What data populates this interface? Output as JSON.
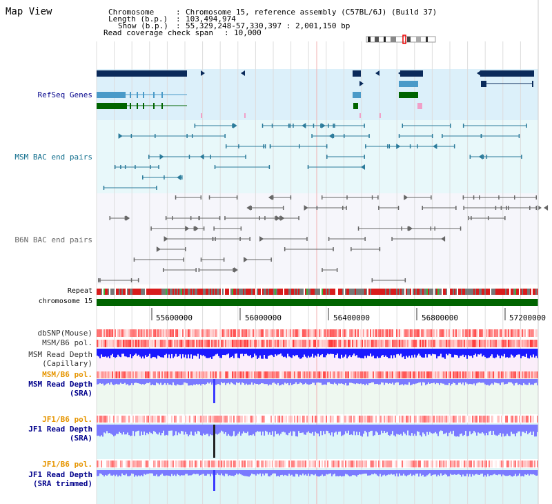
{
  "view_title": "Map View",
  "header": {
    "chromosome_label": "Chromosome",
    "chromosome_value": "Chromosome 15, reference assembly (C57BL/6J) (Build 37)",
    "length_label": "Length (b.p.)",
    "length_value": "103,494,974",
    "show_label": "Show (b.p.)",
    "show_value": "55,329,248-57,330,397 : 2,001,150 bp",
    "coverage_label": "Read coverage check span",
    "coverage_value": "10,000"
  },
  "tracks": {
    "refseq": "RefSeq Genes",
    "msm_bac": "MSM BAC end pairs",
    "b6n_bac": "B6N BAC end pairs",
    "repeat": "Repeat",
    "chromosome": "chromosome 15",
    "dbsnp": "dbSNP(Mouse)",
    "msm_b6_pol_1": "MSM/B6 pol.",
    "msm_depth_cap_1": "MSM Read Depth",
    "msm_depth_cap_2": "(Capillary)",
    "msm_b6_pol_2": "MSM/B6 pol.",
    "msm_depth_sra_1": "MSM Read Depth",
    "msm_depth_sra_2": "(SRA)",
    "jf1_b6_pol_1": "JF1/B6 pol.",
    "jf1_depth_sra_1": "JF1 Read Depth",
    "jf1_depth_sra_2": "(SRA)",
    "jf1_b6_pol_2": "JF1/B6 pol.",
    "jf1_depth_trim_1": "JF1 Read Depth",
    "jf1_depth_trim_2": "(SRA trimmed)"
  },
  "axis_ticks": [
    "55600000",
    "56000000",
    "56400000",
    "56800000",
    "57200000"
  ],
  "colors": {
    "refseq_dark": "#0a2a5a",
    "refseq_mid": "#4a9ac8",
    "refseq_green": "#006400",
    "msm_bac": "#2a7a9a",
    "b6n_bac": "#666666",
    "chrom_green": "#006400",
    "depth_blue": "#1a1aff",
    "depth_light": "#7a7aff",
    "pol_red": "#f04040"
  }
}
